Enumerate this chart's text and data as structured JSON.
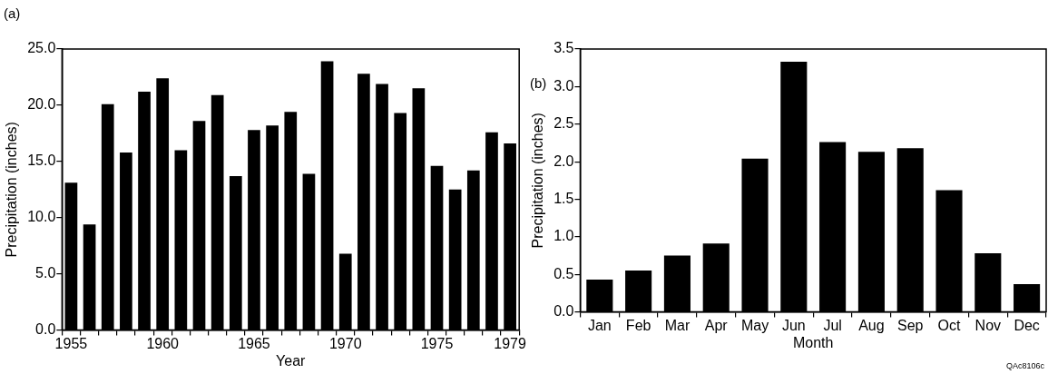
{
  "chart_data": [
    {
      "type": "bar",
      "title": "(a)",
      "xlabel": "Year",
      "ylabel": "Precipitation (inches)",
      "categories": [
        "1955",
        null,
        null,
        null,
        null,
        "1960",
        null,
        null,
        null,
        null,
        "1965",
        null,
        null,
        null,
        null,
        "1970",
        null,
        null,
        null,
        null,
        "1975",
        null,
        null,
        null,
        "1979"
      ],
      "values": [
        13.1,
        9.4,
        20.1,
        15.8,
        21.2,
        22.4,
        16.0,
        18.6,
        20.9,
        13.7,
        17.8,
        18.2,
        19.4,
        13.9,
        23.9,
        6.8,
        22.8,
        21.9,
        19.3,
        21.5,
        14.6,
        12.5,
        14.2,
        17.6,
        16.6
      ],
      "color": "#000000",
      "ylim": [
        0,
        25
      ],
      "yticks": [
        {
          "value": 0,
          "label": "0.0"
        },
        {
          "value": 5,
          "label": "5.0"
        },
        {
          "value": 10,
          "label": "10.0"
        },
        {
          "value": 15,
          "label": "15.0"
        },
        {
          "value": 20,
          "label": "20.0"
        },
        {
          "value": 25,
          "label": "25.0"
        }
      ]
    },
    {
      "type": "bar",
      "title": "(b)",
      "xlabel": "Month",
      "ylabel": "Precipitation (inches)",
      "categories": [
        "Jan",
        "Feb",
        "Mar",
        "Apr",
        "May",
        "Jun",
        "Jul",
        "Aug",
        "Sep",
        "Oct",
        "Nov",
        "Dec"
      ],
      "values": [
        0.43,
        0.55,
        0.75,
        0.91,
        2.04,
        3.33,
        2.26,
        2.13,
        2.18,
        1.62,
        0.78,
        0.37
      ],
      "color": "#000000",
      "ylim": [
        0,
        3.5
      ],
      "yticks": [
        {
          "value": 0,
          "label": "0.0"
        },
        {
          "value": 0.5,
          "label": "0.5"
        },
        {
          "value": 1,
          "label": "1.0"
        },
        {
          "value": 1.5,
          "label": "1.5"
        },
        {
          "value": 2,
          "label": "2.0"
        },
        {
          "value": 2.5,
          "label": "2.5"
        },
        {
          "value": 3,
          "label": "3.0"
        },
        {
          "value": 3.5,
          "label": "3.5"
        }
      ],
      "annotations": [
        "QAc8106c"
      ]
    }
  ]
}
